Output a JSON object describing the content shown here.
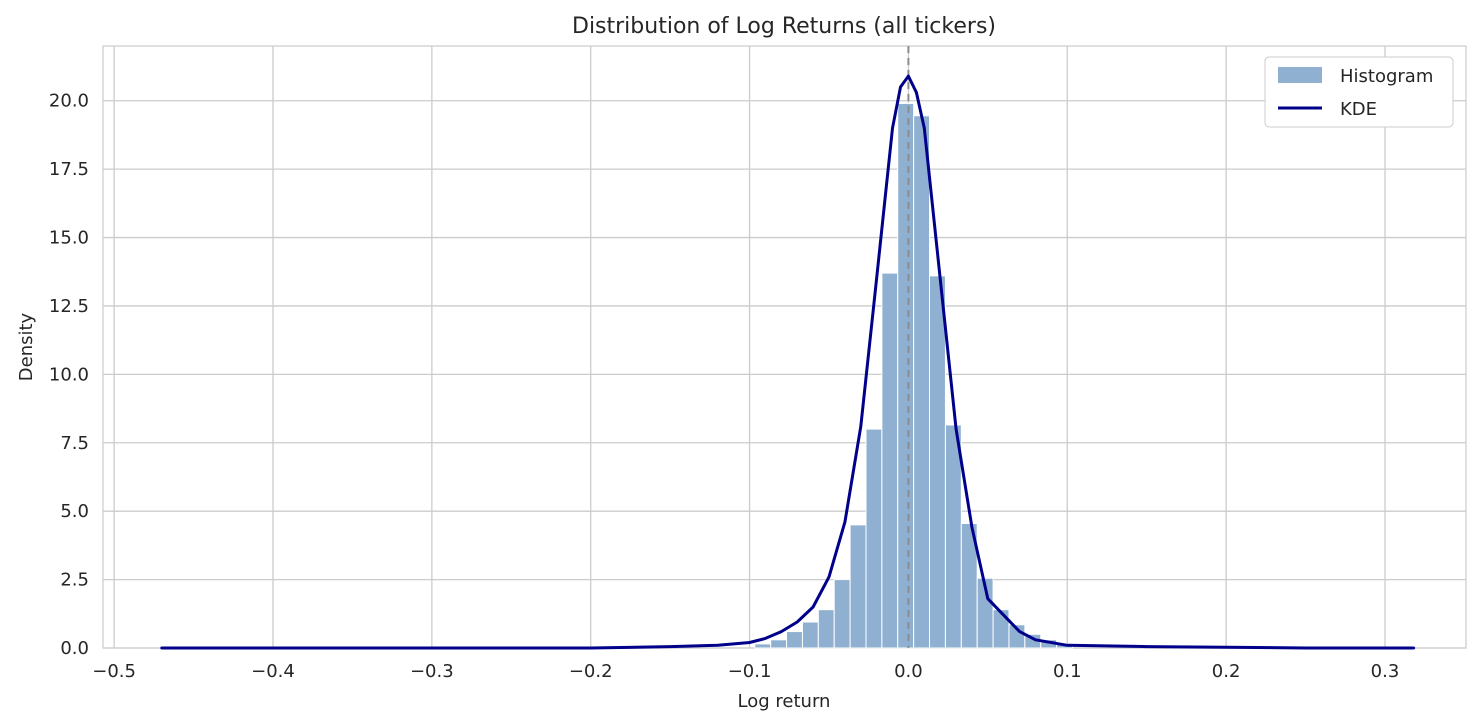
{
  "chart_data": {
    "type": "bar",
    "title": "Distribution of Log Returns (all tickers)",
    "xlabel": "Log return",
    "ylabel": "Density",
    "xlim": [
      -0.507,
      0.351
    ],
    "ylim": [
      0,
      22.0
    ],
    "xticks": [
      -0.5,
      -0.4,
      -0.3,
      -0.2,
      -0.1,
      0.0,
      0.1,
      0.2,
      0.3
    ],
    "xtick_labels": [
      "−0.5",
      "−0.4",
      "−0.3",
      "−0.2",
      "−0.1",
      "0.0",
      "0.1",
      "0.2",
      "0.3"
    ],
    "yticks": [
      0,
      2.5,
      5,
      7.5,
      10,
      12.5,
      15,
      17.5,
      20
    ],
    "ytick_labels": [
      "0.0",
      "2.5",
      "5.0",
      "7.5",
      "10.0",
      "12.5",
      "15.0",
      "17.5",
      "20.0"
    ],
    "grid": true,
    "legend_position": "top-right",
    "reference_line_x": 0.0,
    "histogram": {
      "name": "Histogram",
      "color": "#8fb0d0",
      "bin_edges": [
        -0.0967,
        -0.0867,
        -0.0767,
        -0.0667,
        -0.0567,
        -0.0467,
        -0.0367,
        -0.0267,
        -0.0167,
        -0.0067,
        0.0033,
        0.0133,
        0.0233,
        0.0333,
        0.0433,
        0.0533,
        0.0633,
        0.0733,
        0.0833,
        0.0933,
        0.1033
      ],
      "densities": [
        0.15,
        0.3,
        0.6,
        0.95,
        1.4,
        2.5,
        4.5,
        8.0,
        13.7,
        19.9,
        19.45,
        13.6,
        8.15,
        4.55,
        2.55,
        1.4,
        0.85,
        0.5,
        0.3,
        0.15
      ]
    },
    "kde": {
      "name": "KDE",
      "color": "#00008b",
      "x": [
        -0.47,
        -0.4,
        -0.3,
        -0.2,
        -0.15,
        -0.12,
        -0.1,
        -0.09,
        -0.08,
        -0.07,
        -0.06,
        -0.05,
        -0.04,
        -0.03,
        -0.02,
        -0.01,
        -0.005,
        0.0,
        0.005,
        0.01,
        0.02,
        0.03,
        0.04,
        0.05,
        0.06,
        0.07,
        0.08,
        0.1,
        0.15,
        0.2,
        0.25,
        0.3,
        0.318
      ],
      "y": [
        0.0,
        0.0,
        0.0,
        0.0,
        0.05,
        0.1,
        0.2,
        0.35,
        0.6,
        0.95,
        1.5,
        2.6,
        4.6,
        8.1,
        13.5,
        19.0,
        20.5,
        20.9,
        20.3,
        19.0,
        13.5,
        8.0,
        4.4,
        1.8,
        1.2,
        0.6,
        0.3,
        0.1,
        0.05,
        0.03,
        0.0,
        0.0,
        0.0
      ]
    },
    "legend": [
      "Histogram",
      "KDE"
    ]
  }
}
